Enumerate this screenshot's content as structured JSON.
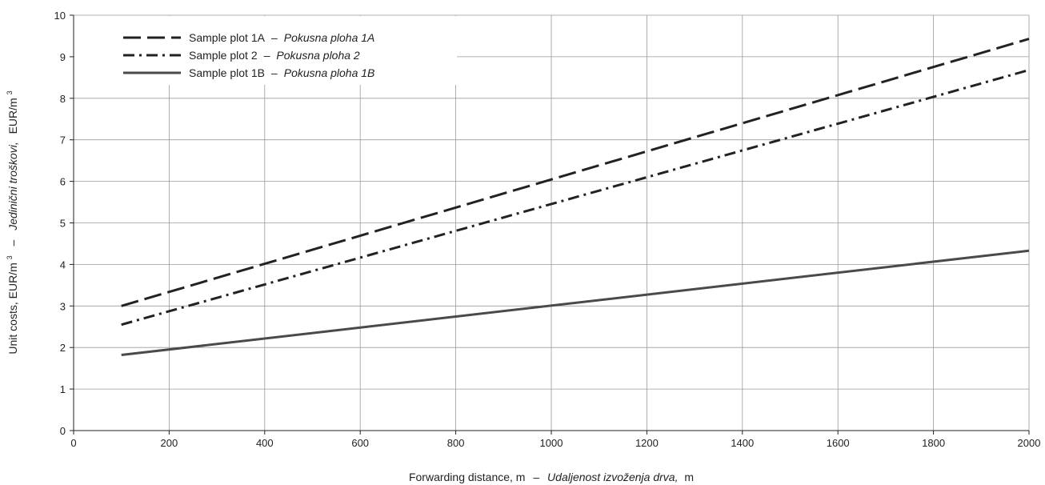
{
  "chart_data": {
    "type": "line",
    "xlabel": {
      "en": "Forwarding distance, m",
      "sep": "–",
      "hr": "Udaljenost izvoženja drva,",
      "unit": "m"
    },
    "ylabel": {
      "en": "Unit costs, EUR/m",
      "sep": "–",
      "hr": "Jedinični troškovi,",
      "unit": "EUR/m"
    },
    "ylabel_sup": "3",
    "xlim": [
      0,
      2000
    ],
    "ylim": [
      0,
      10
    ],
    "x_ticks": [
      "0",
      "200",
      "400",
      "600",
      "800",
      "1000",
      "1200",
      "1400",
      "1600",
      "1800",
      "2000"
    ],
    "y_ticks": [
      "0",
      "1",
      "2",
      "3",
      "4",
      "5",
      "6",
      "7",
      "8",
      "9",
      "10"
    ],
    "grid": true,
    "legend_position": "top-left",
    "series": [
      {
        "name": "Sample plot 1A",
        "name_hr": "Pokusna ploha 1A",
        "dash": "long-dash",
        "color": "#222222",
        "x": [
          100,
          2000
        ],
        "y": [
          3.0,
          9.43
        ]
      },
      {
        "name": "Sample plot 2",
        "name_hr": "Pokusna ploha 2",
        "dash": "dash-dot",
        "color": "#222222",
        "x": [
          100,
          2000
        ],
        "y": [
          2.55,
          8.68
        ]
      },
      {
        "name": "Sample plot 1B",
        "name_hr": "Pokusna ploha 1B",
        "dash": "solid",
        "color": "#4a4a4a",
        "x": [
          100,
          2000
        ],
        "y": [
          1.82,
          4.33
        ]
      }
    ],
    "legend_sep": "–"
  }
}
